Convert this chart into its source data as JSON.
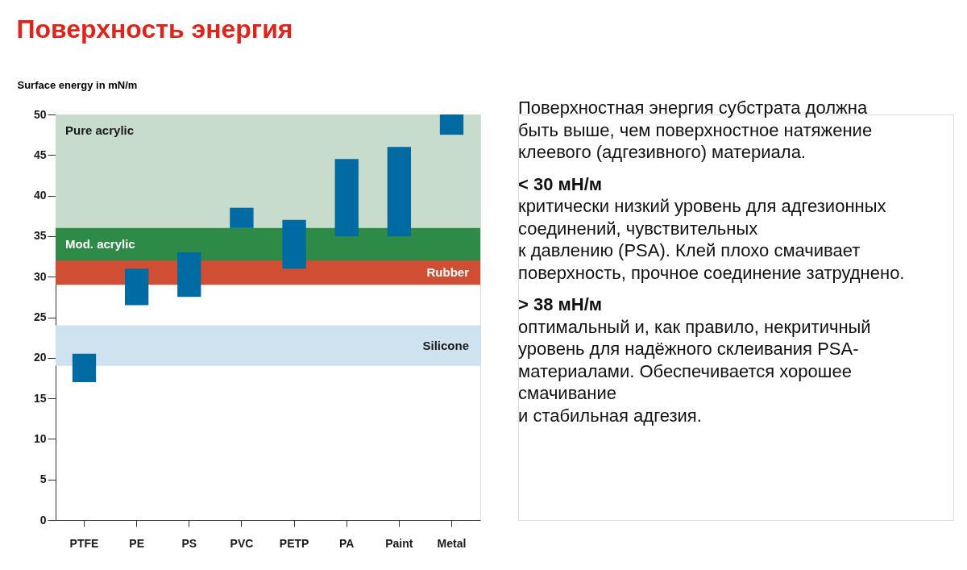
{
  "chart_data": {
    "type": "bar",
    "title": "Поверхность энергия",
    "ylabel": "Surface energy in mN/m",
    "categories": [
      "PTFE",
      "PE",
      "PS",
      "PVC",
      "PETP",
      "PA",
      "Paint",
      "Metal"
    ],
    "base": [
      17,
      26.5,
      27.5,
      36,
      31,
      35,
      35,
      47.5
    ],
    "values": [
      3.5,
      4.5,
      5.5,
      2.5,
      6,
      9.5,
      11,
      2.5
    ],
    "color": "#006ba3",
    "ylim": [
      0,
      50
    ],
    "yticks": [
      0,
      5,
      10,
      15,
      20,
      25,
      30,
      35,
      40,
      45,
      50
    ],
    "bands": [
      {
        "axis": "y",
        "from": 36,
        "to": 50,
        "label": "Pure acrylic",
        "color": "#c7dccd"
      },
      {
        "axis": "y",
        "from": 32,
        "to": 36,
        "label": "Mod. acrylic",
        "color": "#2e8b47"
      },
      {
        "axis": "y",
        "from": 29,
        "to": 32,
        "label": "Rubber",
        "color": "#d04e33"
      },
      {
        "axis": "y",
        "from": 19,
        "to": 24,
        "label": "Silicone",
        "color": "#cfe2f0"
      }
    ],
    "annotations": [
      "Поверхностная энергия субстрата должна\nбыть выше, чем поверхностное натяжение\nклеевого (адгезивного) материала.",
      "< 30 мН/м",
      "критически низкий уровень для адгезионных\nсоединений, чувствительных\nк давлению (PSA). Клей плохо смачивает\nповерхность, прочное соединение затруднено.",
      "> 38 мН/м",
      "оптимальный и, как правило, некритичный\nуровень для надёжного склеивания PSA-\nматериалами. Обеспечивается хорошее\nсмачивание\nи стабильная адгезия."
    ]
  }
}
